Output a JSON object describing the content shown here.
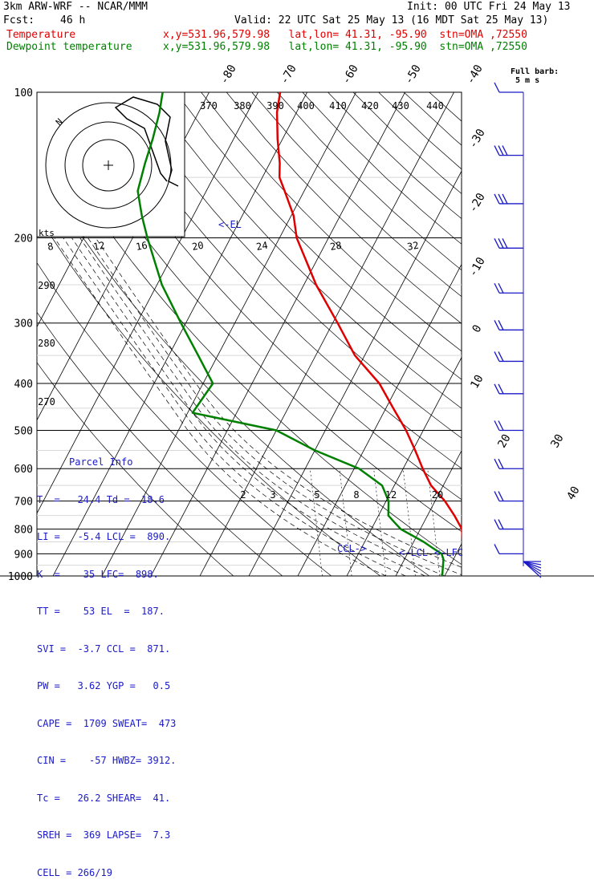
{
  "header": {
    "model": "3km ARW-WRF -- NCAR/MMM",
    "init": "Init: 00 UTC Fri 24 May 13",
    "fcst_label": "Fcst:",
    "fcst_value": "46 h",
    "valid": "Valid: 22 UTC Sat 25 May 13 (16 MDT Sat 25 May 13)",
    "temp_label": "Temperature",
    "dew_label": "Dewpoint temperature",
    "temp_info": "x,y=531.96,579.98   lat,lon= 41.31, -95.90  stn=OMA ,72550",
    "dew_info": "x,y=531.96,579.98   lat,lon= 41.31, -95.90  stn=OMA ,72550"
  },
  "colors": {
    "temperature": "#e00000",
    "dewpoint": "#008000",
    "wind": "#1a1ac8",
    "hodograph": "#000000"
  },
  "barb_label": {
    "line1": "Full barb:",
    "line2": "5 m s"
  },
  "parcel_info": {
    "title": "Parcel Info",
    "rows": [
      "T  =   24.4 Td =  18.6",
      "LI =   -5.4 LCL =  890.",
      "K  =    35 LFC=  898.",
      "TT =    53 EL  =  187.",
      "SVI =  -3.7 CCL =  871.",
      "PW =   3.62 YGP =   0.5",
      "CAPE =  1709 SWEAT=  473",
      "CIN =    -57 HWBZ= 3912.",
      "Tc =   26.2 SHEAR=  41.",
      "SREH =  369 LAPSE=  7.3",
      "CELL = 266/19"
    ]
  },
  "annotations": {
    "el": "<-EL",
    "ccl": "CCL->",
    "lcl": "<-LCL",
    "lfc": "<-LFC",
    "hodo_n": "N"
  },
  "chart_data": {
    "type": "line",
    "title": "",
    "y_label": "",
    "y_scale": "log-pressure (hPa)",
    "pressure_levels": [
      100,
      200,
      300,
      400,
      500,
      600,
      700,
      800,
      900,
      1000
    ],
    "isotherm_labels": [
      "-80",
      "-70",
      "-60",
      "-50",
      "-40",
      "-30",
      "-20",
      "-10",
      "0",
      "10",
      "20",
      "30",
      "40"
    ],
    "theta_labels": [
      "370",
      "380",
      "390",
      "400",
      "410",
      "420",
      "430",
      "440",
      "290",
      "280",
      "270"
    ],
    "mixing_ratio_labels": [
      "2",
      "3",
      "5",
      "8",
      "12",
      "20"
    ],
    "hodo_speed_labels": [
      "kts",
      "8",
      "12",
      "16",
      "20",
      "24",
      "28",
      "32"
    ],
    "series": [
      {
        "name": "Temperature",
        "points": [
          [
            1000,
            29.0
          ],
          [
            975,
            26.5
          ],
          [
            950,
            24.5
          ],
          [
            925,
            22.5
          ],
          [
            900,
            21.5
          ],
          [
            850,
            20.0
          ],
          [
            800,
            18.5
          ],
          [
            750,
            15.5
          ],
          [
            700,
            12.0
          ],
          [
            650,
            7.5
          ],
          [
            600,
            4.0
          ],
          [
            550,
            0.5
          ],
          [
            500,
            -3.5
          ],
          [
            450,
            -8.5
          ],
          [
            400,
            -14.0
          ],
          [
            350,
            -22.0
          ],
          [
            300,
            -29.0
          ],
          [
            250,
            -37.5
          ],
          [
            200,
            -46.5
          ],
          [
            180,
            -49.5
          ],
          [
            160,
            -54.0
          ],
          [
            150,
            -56.5
          ],
          [
            140,
            -58.0
          ],
          [
            125,
            -61.0
          ],
          [
            110,
            -64.0
          ],
          [
            100,
            -65.5
          ]
        ]
      },
      {
        "name": "Dewpoint temperature",
        "points": [
          [
            1000,
            19.5
          ],
          [
            975,
            19.0
          ],
          [
            950,
            18.5
          ],
          [
            925,
            18.0
          ],
          [
            900,
            17.0
          ],
          [
            875,
            14.5
          ],
          [
            850,
            12.0
          ],
          [
            800,
            6.0
          ],
          [
            775,
            4.0
          ],
          [
            750,
            2.0
          ],
          [
            700,
            0.5
          ],
          [
            650,
            -2.5
          ],
          [
            600,
            -9.0
          ],
          [
            550,
            -20.0
          ],
          [
            500,
            -30.0
          ],
          [
            460,
            -49.0
          ],
          [
            400,
            -48.0
          ],
          [
            350,
            -54.0
          ],
          [
            300,
            -61.0
          ],
          [
            250,
            -69.0
          ],
          [
            200,
            -77.0
          ],
          [
            180,
            -80.5
          ],
          [
            160,
            -84.0
          ],
          [
            140,
            -85.5
          ],
          [
            125,
            -86.5
          ],
          [
            110,
            -88.0
          ],
          [
            100,
            -89.5
          ]
        ]
      }
    ],
    "wind_barbs": [
      {
        "p": 100,
        "count": 1
      },
      {
        "p": 135,
        "count": 3
      },
      {
        "p": 170,
        "count": 3
      },
      {
        "p": 210,
        "count": 3
      },
      {
        "p": 260,
        "count": 2
      },
      {
        "p": 310,
        "count": 2
      },
      {
        "p": 360,
        "count": 2
      },
      {
        "p": 420,
        "count": 2
      },
      {
        "p": 500,
        "count": 2
      },
      {
        "p": 600,
        "count": 2
      },
      {
        "p": 700,
        "count": 2
      },
      {
        "p": 800,
        "count": 2
      },
      {
        "p": 900,
        "count": 1
      }
    ]
  }
}
